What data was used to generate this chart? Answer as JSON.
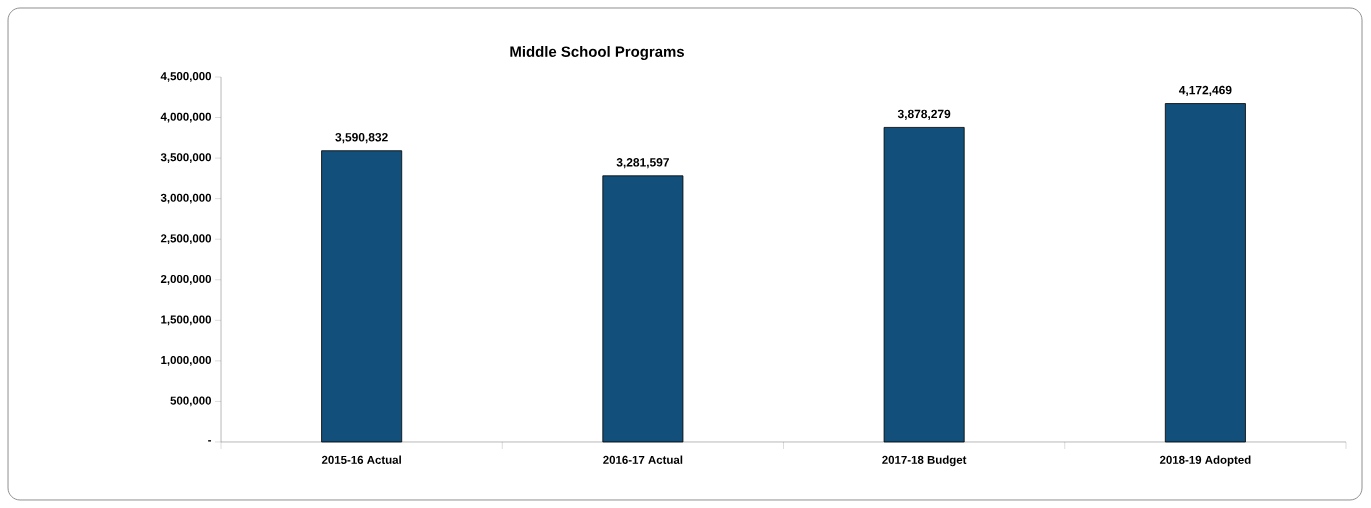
{
  "chart_data": {
    "type": "bar",
    "title": "Middle School Programs",
    "categories": [
      "2015-16 Actual",
      "2016-17 Actual",
      "2017-18 Budget",
      "2018-19 Adopted"
    ],
    "values": [
      3590832,
      3281597,
      3878279,
      4172469
    ],
    "value_labels": [
      "3,590,832",
      "3,281,597",
      "3,878,279",
      "4,172,469"
    ],
    "color": "#124f7a",
    "ylim": [
      0,
      4500000
    ],
    "yticks": [
      {
        "value": 0,
        "label": "-"
      },
      {
        "value": 500000,
        "label": "500,000"
      },
      {
        "value": 1000000,
        "label": "1,000,000"
      },
      {
        "value": 1500000,
        "label": "1,500,000"
      },
      {
        "value": 2000000,
        "label": "2,000,000"
      },
      {
        "value": 2500000,
        "label": "2,500,000"
      },
      {
        "value": 3000000,
        "label": "3,000,000"
      },
      {
        "value": 3500000,
        "label": "3,500,000"
      },
      {
        "value": 4000000,
        "label": "4,000,000"
      },
      {
        "value": 4500000,
        "label": "4,500,000"
      }
    ]
  }
}
